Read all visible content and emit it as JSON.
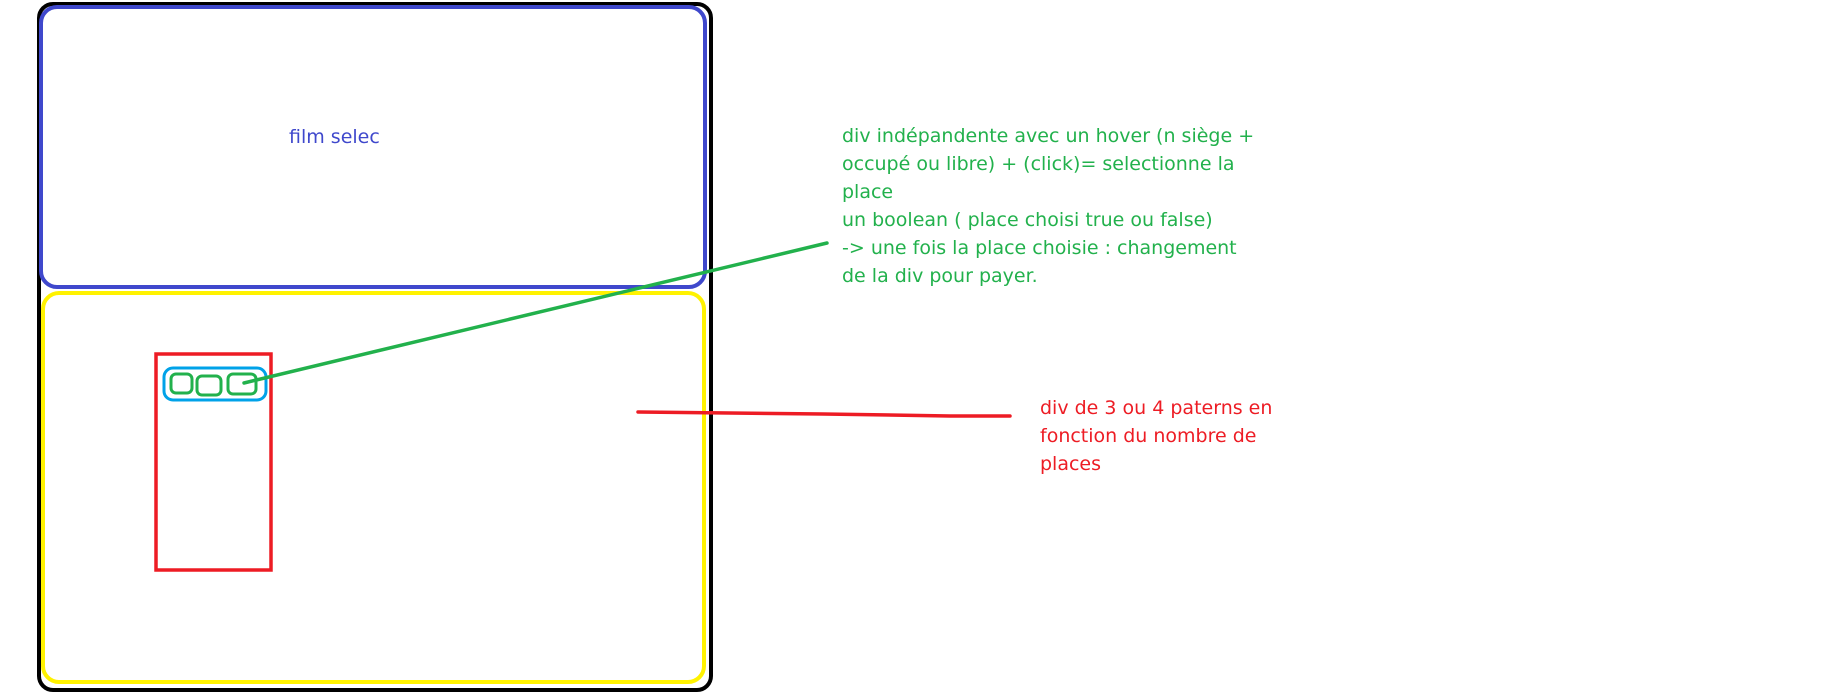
{
  "colors": {
    "outer": "#000000",
    "film_section": "#3f48cc",
    "seat_section": "#fff200",
    "row_container": "#ed1c24",
    "row": "#00a2e8",
    "seat": "#22b14c",
    "background": "#ffffff"
  },
  "labels": {
    "film_section": "film selec",
    "seat_note": [
      "div indépandente avec un hover (n siège +",
      "occupé ou libre) + (click)= selectionne la",
      "place",
      "un boolean ( place choisi true ou false)",
      "-> une fois la place choisie : changement",
      "de la div pour payer."
    ],
    "rows_note": [
      "div de 3 ou 4 paterns en",
      "fonction du nombre de",
      "places"
    ]
  },
  "seat_count": 3
}
